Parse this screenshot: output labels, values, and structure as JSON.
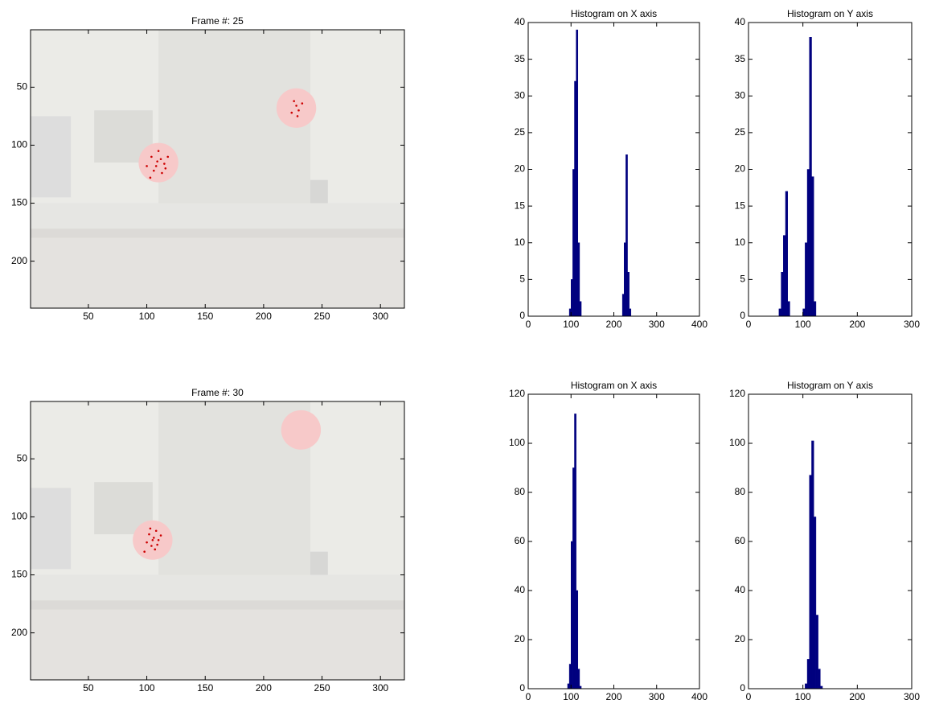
{
  "chart_data": [
    {
      "type": "scatter",
      "title": "Frame #: 25",
      "color": "#cc0000",
      "x": [
        104,
        108,
        112,
        106,
        115,
        110,
        100,
        113,
        118,
        103,
        109,
        116,
        226,
        230,
        228,
        224,
        233,
        229
      ],
      "values": [
        110,
        118,
        112,
        122,
        116,
        105,
        118,
        124,
        110,
        128,
        114,
        120,
        62,
        70,
        66,
        72,
        64,
        75
      ],
      "xlim": [
        0.5,
        320.5
      ],
      "ylim": [
        240.5,
        0.5
      ],
      "xticks": [
        50,
        100,
        150,
        200,
        250,
        300
      ],
      "yticks": [
        50,
        100,
        150,
        200
      ]
    },
    {
      "type": "histogram",
      "title": "Histogram on X axis",
      "color": "#00007f",
      "bins": [
        96,
        100,
        104,
        108,
        112,
        116,
        120,
        124,
        128,
        132,
        136,
        140,
        144,
        148,
        152,
        156,
        160,
        164,
        168,
        172,
        176,
        180,
        184,
        188,
        192,
        196,
        200,
        204,
        208,
        212,
        216,
        220,
        224,
        228,
        232,
        236,
        240
      ],
      "values": [
        1,
        5,
        20,
        32,
        39,
        10,
        2,
        0,
        0,
        0,
        0,
        0,
        0,
        0,
        0,
        0,
        0,
        0,
        0,
        0,
        0,
        0,
        0,
        0,
        0,
        0,
        0,
        0,
        0,
        0,
        0,
        3,
        10,
        22,
        6,
        1
      ],
      "xlim": [
        0,
        400
      ],
      "ylim": [
        0,
        40
      ],
      "xticks": [
        0,
        100,
        200,
        300,
        400
      ],
      "yticks": [
        0,
        5,
        10,
        15,
        20,
        25,
        30,
        35,
        40
      ]
    },
    {
      "type": "histogram",
      "title": "Histogram on Y axis",
      "color": "#00007f",
      "bins": [
        56,
        60,
        64,
        68,
        72,
        76,
        80,
        84,
        88,
        92,
        96,
        100,
        104,
        108,
        112,
        116,
        120,
        124
      ],
      "values": [
        1,
        6,
        11,
        17,
        2,
        0,
        0,
        0,
        0,
        0,
        0,
        1,
        10,
        20,
        38,
        19,
        2
      ],
      "xlim": [
        0,
        300
      ],
      "ylim": [
        0,
        40
      ],
      "xticks": [
        0,
        100,
        200,
        300
      ],
      "yticks": [
        0,
        5,
        10,
        15,
        20,
        25,
        30,
        35,
        40
      ]
    },
    {
      "type": "scatter",
      "title": "Frame #: 30",
      "color": "#cc0000",
      "x": [
        102,
        106,
        108,
        104,
        110,
        100,
        107,
        112,
        103,
        109,
        105,
        98
      ],
      "values": [
        115,
        118,
        112,
        125,
        120,
        122,
        128,
        116,
        110,
        124,
        120,
        130
      ],
      "xlim": [
        0.5,
        320.5
      ],
      "ylim": [
        240.5,
        0.5
      ],
      "xticks": [
        50,
        100,
        150,
        200,
        250,
        300
      ],
      "yticks": [
        50,
        100,
        150,
        200
      ]
    },
    {
      "type": "histogram",
      "title": "Histogram on X axis",
      "color": "#00007f",
      "bins": [
        92,
        96,
        100,
        104,
        108,
        112,
        116,
        120,
        124
      ],
      "values": [
        2,
        10,
        60,
        90,
        112,
        40,
        8,
        1
      ],
      "xlim": [
        0,
        400
      ],
      "ylim": [
        0,
        120
      ],
      "xticks": [
        0,
        100,
        200,
        300,
        400
      ],
      "yticks": [
        0,
        20,
        40,
        60,
        80,
        100,
        120
      ]
    },
    {
      "type": "histogram",
      "title": "Histogram on Y axis",
      "color": "#00007f",
      "bins": [
        104,
        108,
        112,
        116,
        120,
        124,
        128,
        132,
        136
      ],
      "values": [
        2,
        12,
        87,
        101,
        70,
        30,
        8,
        1
      ],
      "xlim": [
        0,
        300
      ],
      "ylim": [
        0,
        120
      ],
      "xticks": [
        0,
        100,
        200,
        300
      ],
      "yticks": [
        0,
        20,
        40,
        60,
        80,
        100,
        120
      ]
    }
  ]
}
